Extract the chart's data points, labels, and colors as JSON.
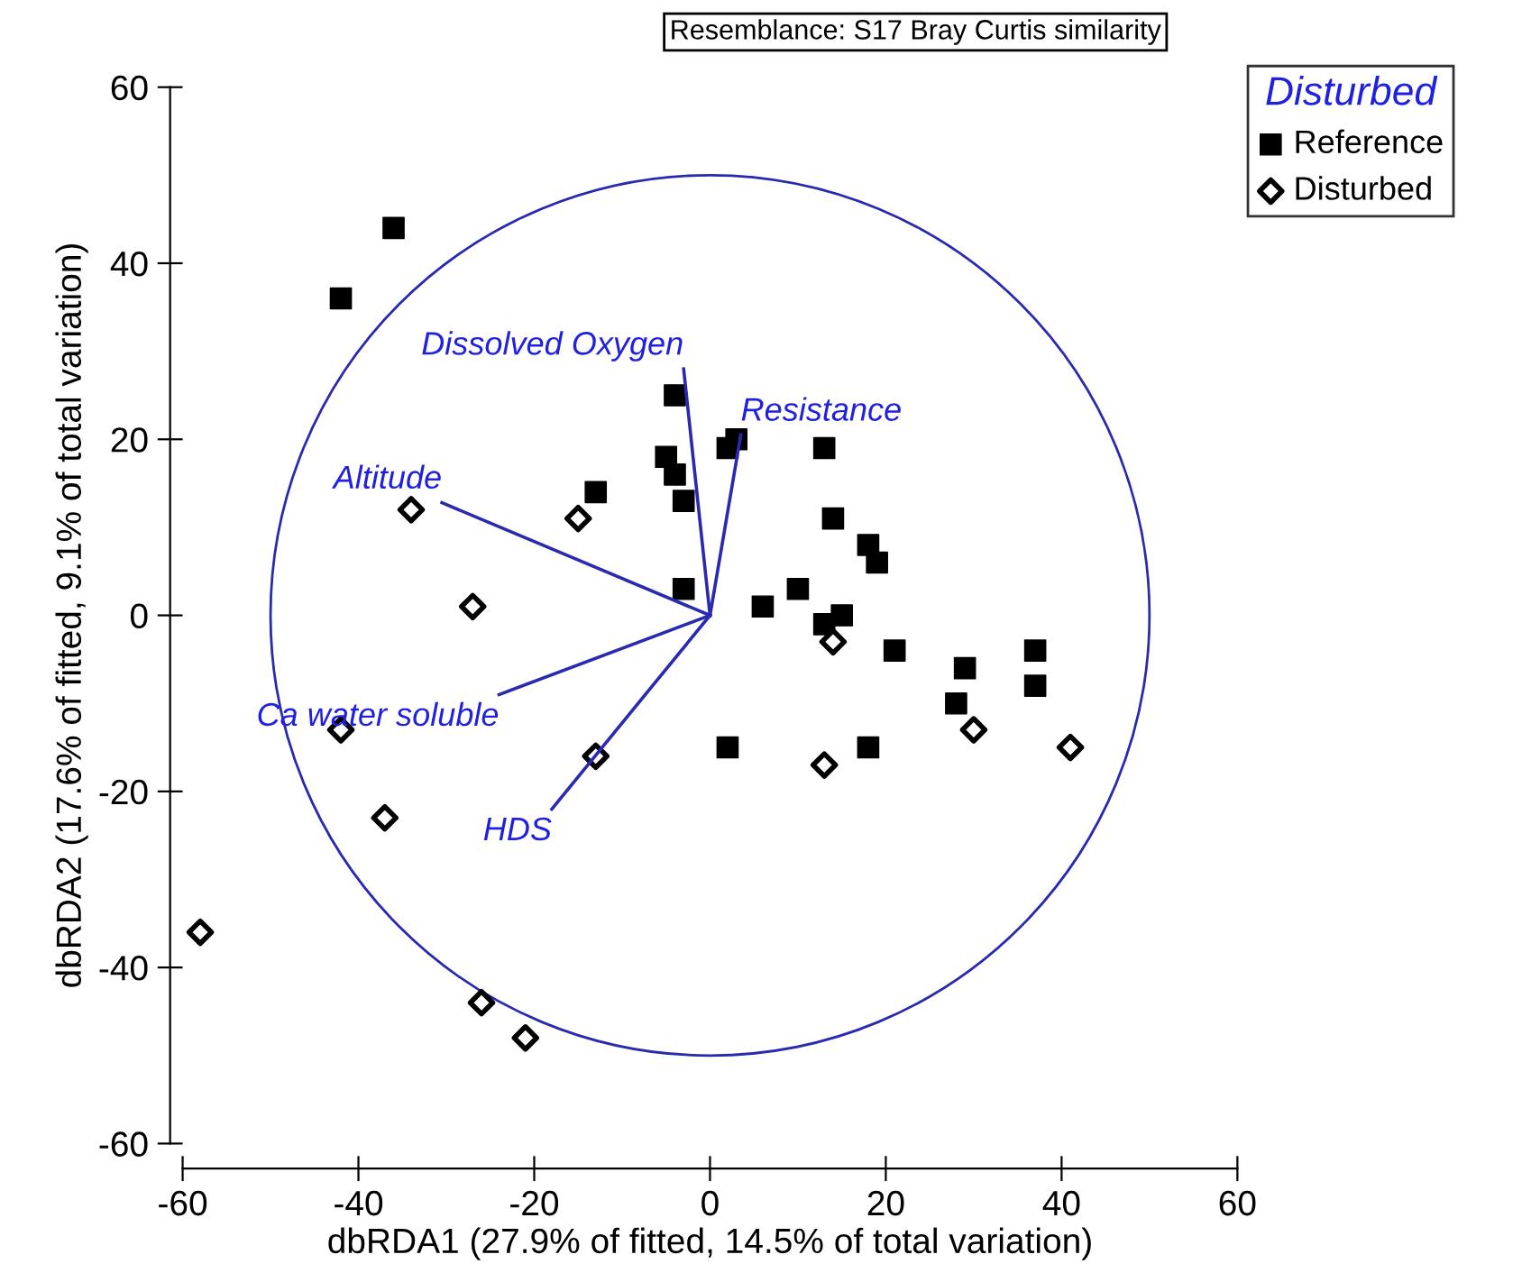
{
  "chart_data": {
    "type": "scatter",
    "xlabel": "dbRDA1 (27.9% of fitted, 14.5% of total variation)",
    "ylabel": "dbRDA2 (17.6% of fitted, 9.1% of total variation)",
    "legend_title": "Disturbed",
    "annotations": [
      "Resemblance: S17 Bray Curtis similarity"
    ],
    "xlim": [
      -60,
      60
    ],
    "ylim": [
      -60,
      60
    ],
    "xticks": [
      -60,
      -40,
      -20,
      0,
      20,
      40,
      60
    ],
    "yticks": [
      -60,
      -40,
      -20,
      0,
      20,
      40,
      60
    ],
    "grid": false,
    "legend": "top right",
    "series": [
      {
        "name": "Reference",
        "marker": "square",
        "color": "#000000",
        "x": [
          -36,
          -42,
          -4,
          -5,
          -4,
          -3,
          -13,
          -3,
          3,
          2,
          13,
          14,
          18,
          19,
          10,
          6,
          13,
          15,
          21,
          29,
          28,
          37,
          37,
          2,
          18
        ],
        "values": [
          44,
          36,
          25,
          18,
          16,
          13,
          14,
          3,
          20,
          19,
          19,
          11,
          8,
          6,
          3,
          1,
          -1,
          0,
          -4,
          -6,
          -10,
          -4,
          -8,
          -15,
          -15
        ]
      },
      {
        "name": "Disturbed",
        "marker": "diamond",
        "color": "#000000",
        "x": [
          -34,
          -15,
          -27,
          -42,
          -13,
          -37,
          -58,
          -26,
          -21,
          14,
          30,
          41,
          13
        ],
        "values": [
          12,
          11,
          1,
          -13,
          -16,
          -23,
          -36,
          -44,
          -48,
          -3,
          -13,
          -15,
          -17
        ]
      },
      {
        "name": "Dissolved Oxygen",
        "type": "line",
        "color": "#2a2ab0",
        "x": [
          0,
          -3
        ],
        "values": [
          0,
          28
        ]
      },
      {
        "name": "Resistance",
        "type": "line",
        "color": "#2a2ab0",
        "x": [
          0,
          3.5
        ],
        "values": [
          0,
          20.5
        ]
      },
      {
        "name": "Altitude",
        "type": "line",
        "color": "#2a2ab0",
        "x": [
          0,
          -30.5
        ],
        "values": [
          0,
          12.8
        ]
      },
      {
        "name": "Ca water soluble",
        "type": "line",
        "color": "#2a2ab0",
        "x": [
          0,
          -24
        ],
        "values": [
          0,
          -9
        ]
      },
      {
        "name": "HDS",
        "type": "line",
        "color": "#2a2ab0",
        "x": [
          0,
          -18
        ],
        "values": [
          0,
          -22
        ]
      }
    ]
  }
}
